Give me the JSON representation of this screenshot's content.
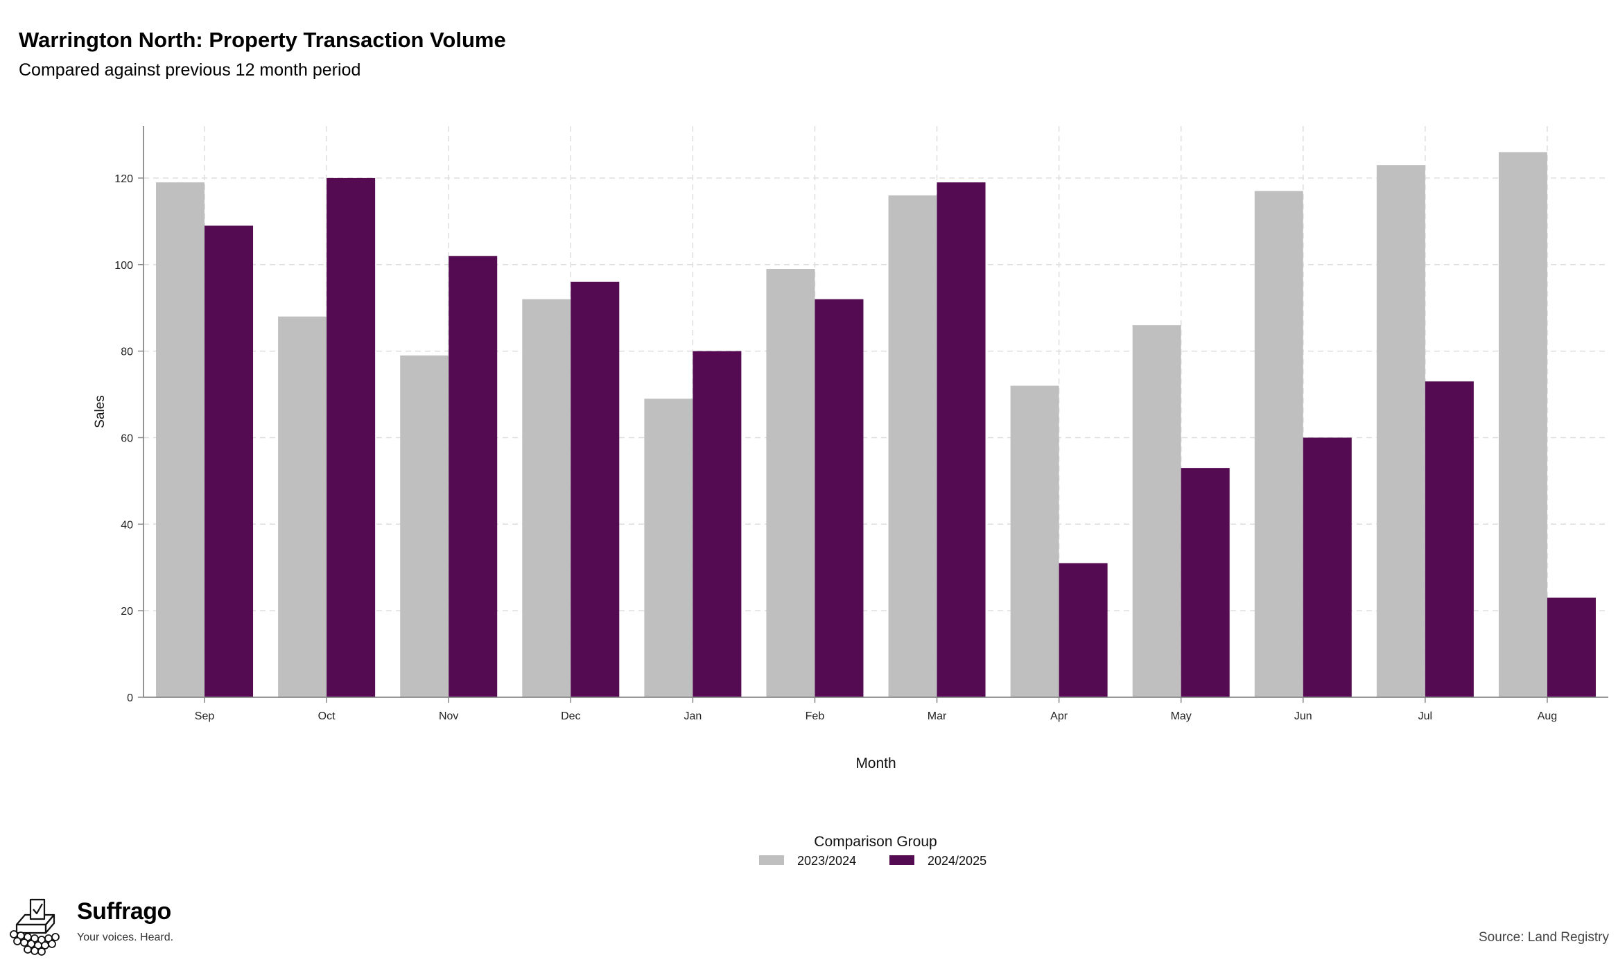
{
  "header": {
    "title": "Warrington North: Property Transaction Volume",
    "subtitle": "Compared against previous 12 month period"
  },
  "footer": {
    "brand_name": "Suffrago",
    "brand_tagline": "Your voices. Heard.",
    "source": "Source: Land Registry"
  },
  "chart_data": {
    "type": "bar",
    "title": "Warrington North: Property Transaction Volume",
    "subtitle": "Compared against previous 12 month period",
    "xlabel": "Month",
    "ylabel": "Sales",
    "categories": [
      "Sep",
      "Oct",
      "Nov",
      "Dec",
      "Jan",
      "Feb",
      "Mar",
      "Apr",
      "May",
      "Jun",
      "Jul",
      "Aug"
    ],
    "series": [
      {
        "name": "2023/2024",
        "color": "#bfbfbf",
        "values": [
          119,
          88,
          79,
          92,
          69,
          99,
          116,
          72,
          86,
          117,
          123,
          126
        ]
      },
      {
        "name": "2024/2025",
        "color": "#550b52",
        "values": [
          109,
          120,
          102,
          96,
          80,
          92,
          119,
          31,
          53,
          60,
          73,
          23
        ]
      }
    ],
    "ylim": [
      0,
      132
    ],
    "yticks": [
      0,
      20,
      40,
      60,
      80,
      100,
      120
    ],
    "grid": true,
    "legend_title": "Comparison Group",
    "legend_position": "bottom"
  }
}
